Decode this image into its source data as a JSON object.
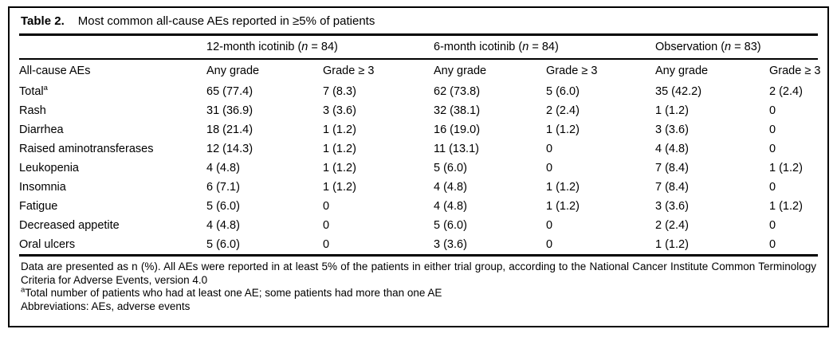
{
  "title": {
    "label": "Table 2.",
    "text": "Most common all-cause AEs reported in ≥5% of patients"
  },
  "table": {
    "stub_header": "All-cause AEs",
    "groups": [
      {
        "pre": "12-month icotinib (",
        "n": "n",
        "post": " = 84)"
      },
      {
        "pre": "6-month icotinib (",
        "n": "n",
        "post": " = 84)"
      },
      {
        "pre": "Observation (",
        "n": "n",
        "post": " = 83)"
      }
    ],
    "col_headers": [
      "Any grade",
      "Grade ≥ 3",
      "Any grade",
      "Grade ≥ 3",
      "Any grade",
      "Grade ≥ 3"
    ],
    "rows": [
      {
        "label": "Total",
        "sup": "a",
        "cells": [
          "65 (77.4)",
          "7 (8.3)",
          "62 (73.8)",
          "5 (6.0)",
          "35 (42.2)",
          "2 (2.4)"
        ]
      },
      {
        "label": "Rash",
        "cells": [
          "31 (36.9)",
          "3 (3.6)",
          "32 (38.1)",
          "2 (2.4)",
          "1 (1.2)",
          "0"
        ]
      },
      {
        "label": "Diarrhea",
        "cells": [
          "18 (21.4)",
          "1 (1.2)",
          "16 (19.0)",
          "1 (1.2)",
          "3 (3.6)",
          "0"
        ]
      },
      {
        "label": "Raised aminotransferases",
        "cells": [
          "12 (14.3)",
          "1 (1.2)",
          "11 (13.1)",
          "0",
          "4 (4.8)",
          "0"
        ]
      },
      {
        "label": "Leukopenia",
        "cells": [
          "4 (4.8)",
          "1 (1.2)",
          "5 (6.0)",
          "0",
          "7 (8.4)",
          "1 (1.2)"
        ]
      },
      {
        "label": "Insomnia",
        "cells": [
          "6 (7.1)",
          "1 (1.2)",
          "4 (4.8)",
          "1 (1.2)",
          "7 (8.4)",
          "0"
        ]
      },
      {
        "label": "Fatigue",
        "cells": [
          "5 (6.0)",
          "0",
          "4 (4.8)",
          "1 (1.2)",
          "3 (3.6)",
          "1 (1.2)"
        ]
      },
      {
        "label": "Decreased appetite",
        "cells": [
          "4 (4.8)",
          "0",
          "5 (6.0)",
          "0",
          "2 (2.4)",
          "0"
        ]
      },
      {
        "label": "Oral ulcers",
        "cells": [
          "5 (6.0)",
          "0",
          "3 (3.6)",
          "0",
          "1 (1.2)",
          "0"
        ]
      }
    ]
  },
  "footnotes": {
    "general": "Data are presented as n (%). All AEs were reported in at least 5% of the patients in either trial group, according to the National Cancer Institute Common Terminology Criteria for Adverse Events, version 4.0",
    "a_sup": "a",
    "a_text": "Total number of patients who had at least one AE; some patients had more than one AE",
    "abbreviations": "Abbreviations: AEs, adverse events"
  },
  "colors": {
    "text": "#000000",
    "background": "#ffffff",
    "rule": "#000000"
  }
}
